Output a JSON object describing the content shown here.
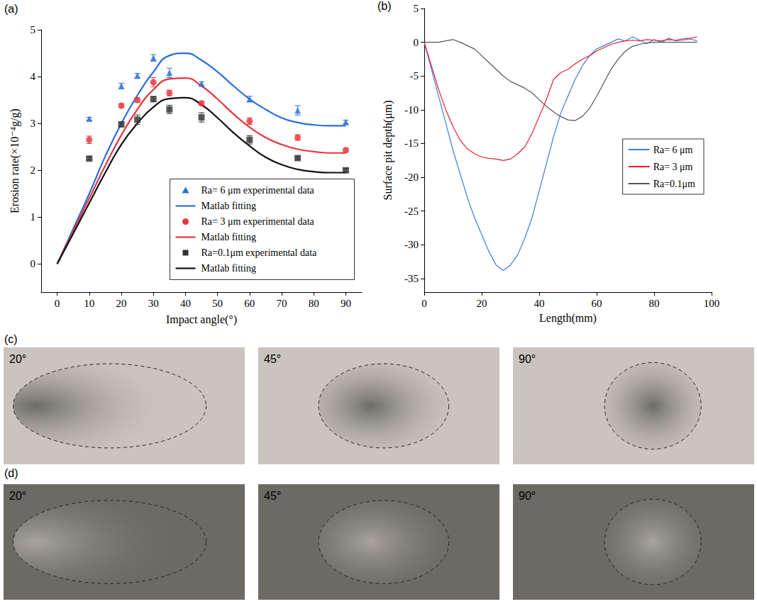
{
  "chart_data": [
    {
      "label": "(a)",
      "type": "scatter",
      "xlabel": "Impact angle(°)",
      "ylabel": "Erosion rate(×10⁻⁴g/g)",
      "xlim": [
        -5,
        95
      ],
      "xticks": [
        0,
        10,
        20,
        30,
        40,
        50,
        60,
        70,
        80,
        90
      ],
      "ylim": [
        -0.6,
        5
      ],
      "yticks": [
        0,
        1,
        2,
        3,
        4,
        5
      ],
      "grid": false,
      "legend": "lower right",
      "series": [
        {
          "name": "Ra= 6 μm experimental data",
          "type": "scatter",
          "color": "#2a6fd8",
          "marker": "triangle",
          "x": [
            10,
            20,
            25,
            30,
            35,
            45,
            60,
            75,
            90
          ],
          "values": [
            3.1,
            3.8,
            4.02,
            4.4,
            4.08,
            3.85,
            3.52,
            3.28,
            3.03
          ],
          "errors": [
            0.03,
            0.06,
            0.05,
            0.07,
            0.1,
            0.04,
            0.06,
            0.1,
            0.04
          ]
        },
        {
          "name": "Matlab fitting",
          "type": "line",
          "color": "#2a6fd8",
          "line_style": "solid",
          "x": [
            0,
            5,
            10,
            15,
            20,
            25,
            30,
            35,
            40,
            45,
            50,
            55,
            60,
            65,
            70,
            75,
            80,
            85,
            90
          ],
          "values": [
            0,
            0.75,
            1.5,
            2.3,
            3.0,
            3.6,
            4.1,
            4.45,
            4.5,
            4.35,
            4.1,
            3.8,
            3.52,
            3.3,
            3.12,
            3.02,
            2.97,
            2.95,
            2.95
          ]
        },
        {
          "name": "Ra= 3 μm experimental data",
          "type": "scatter",
          "color": "#e8353b",
          "marker": "circle",
          "x": [
            10,
            20,
            25,
            30,
            35,
            45,
            60,
            75,
            90
          ],
          "values": [
            2.65,
            3.38,
            3.5,
            3.88,
            3.65,
            3.43,
            3.05,
            2.7,
            2.43
          ],
          "errors": [
            0.08,
            0.04,
            0.05,
            0.1,
            0.06,
            0.04,
            0.07,
            0.06,
            0.04
          ]
        },
        {
          "name": "Matlab fitting",
          "type": "line",
          "color": "#e8353b",
          "line_style": "solid",
          "x": [
            0,
            5,
            10,
            15,
            20,
            25,
            30,
            35,
            40,
            45,
            50,
            55,
            60,
            65,
            70,
            75,
            80,
            85,
            90
          ],
          "values": [
            0,
            0.7,
            1.4,
            2.1,
            2.75,
            3.3,
            3.72,
            3.95,
            3.97,
            3.8,
            3.52,
            3.2,
            2.92,
            2.7,
            2.55,
            2.45,
            2.4,
            2.37,
            2.37
          ]
        },
        {
          "name": "Ra=0.1μm experimental data",
          "type": "scatter",
          "color": "#333333",
          "marker": "square",
          "x": [
            10,
            20,
            25,
            30,
            35,
            45,
            60,
            75,
            90
          ],
          "values": [
            2.25,
            2.98,
            3.08,
            3.52,
            3.3,
            3.13,
            2.65,
            2.26,
            2.0
          ],
          "errors": [
            0.03,
            0.04,
            0.1,
            0.05,
            0.09,
            0.1,
            0.09,
            0.03,
            0.04
          ]
        },
        {
          "name": "Matlab fitting",
          "type": "line",
          "color": "#111111",
          "line_style": "solid",
          "x": [
            0,
            5,
            10,
            15,
            20,
            25,
            30,
            35,
            40,
            45,
            50,
            55,
            60,
            65,
            70,
            75,
            80,
            85,
            90
          ],
          "values": [
            0,
            0.65,
            1.3,
            1.95,
            2.55,
            3.0,
            3.35,
            3.53,
            3.55,
            3.4,
            3.12,
            2.8,
            2.52,
            2.28,
            2.12,
            2.02,
            1.97,
            1.95,
            1.95
          ]
        }
      ]
    },
    {
      "label": "(b)",
      "type": "line",
      "xlabel": "Length(mm)",
      "ylabel": "Surface pit depth(μm)",
      "xlim": [
        0,
        100
      ],
      "xticks": [
        0,
        20,
        40,
        60,
        80,
        100
      ],
      "ylim": [
        -37,
        5
      ],
      "yticks": [
        -35,
        -30,
        -25,
        -20,
        -15,
        -10,
        -5,
        0,
        5
      ],
      "grid": false,
      "legend": "right",
      "x": [
        0,
        2.5,
        5,
        7.5,
        10,
        12.5,
        15,
        17.5,
        20,
        22.5,
        25,
        27.5,
        30,
        32.5,
        35,
        37.5,
        40,
        42.5,
        45,
        47.5,
        50,
        52.5,
        55,
        57.5,
        60,
        62.5,
        65,
        67.5,
        70,
        72.5,
        75,
        77.5,
        80,
        82.5,
        85,
        87.5,
        90,
        92.5,
        95
      ],
      "series": [
        {
          "name": "Ra= 6 μm",
          "color": "#3b7ddd",
          "line_style": "solid",
          "values": [
            0,
            -4,
            -8,
            -12,
            -16,
            -19.5,
            -23,
            -26,
            -28.5,
            -31,
            -33,
            -33.8,
            -33,
            -31.5,
            -29,
            -26,
            -22,
            -18,
            -14,
            -10.5,
            -8,
            -5.5,
            -3.5,
            -2,
            -1,
            -0.5,
            0,
            0.5,
            0.2,
            0.8,
            0.3,
            -0.2,
            0.4,
            0,
            0.6,
            0.2,
            0.3,
            0.5,
            0.2
          ]
        },
        {
          "name": "Ra= 3 μm",
          "color": "#e8202a",
          "line_style": "solid",
          "values": [
            0,
            -3.5,
            -7,
            -10,
            -12.5,
            -14.5,
            -15.8,
            -16.5,
            -17,
            -17.2,
            -17.3,
            -17.5,
            -17.3,
            -16.5,
            -15.5,
            -13.5,
            -11,
            -8.5,
            -5.5,
            -4.5,
            -4,
            -3.2,
            -2.5,
            -2,
            -1.3,
            -0.8,
            -0.3,
            0,
            0.2,
            0.3,
            0.2,
            0.4,
            0.3,
            0.2,
            0.4,
            0.3,
            0.5,
            0.6,
            0.8
          ]
        },
        {
          "name": "Ra=0.1μm",
          "color": "#555555",
          "line_style": "solid",
          "values": [
            0,
            0,
            0,
            0.2,
            0.4,
            0,
            -0.5,
            -1,
            -2,
            -3,
            -4,
            -5,
            -5.8,
            -6.3,
            -6.8,
            -7.5,
            -8.5,
            -9.5,
            -10.3,
            -11,
            -11.5,
            -11.6,
            -11,
            -9.8,
            -8,
            -6,
            -4,
            -2.5,
            -1.3,
            -0.6,
            -0.3,
            -0.1,
            0,
            0,
            0,
            0,
            0,
            0,
            0
          ]
        }
      ]
    }
  ],
  "photos": [
    {
      "label": "(c)",
      "panels": [
        "20°",
        "45°",
        "90°"
      ]
    },
    {
      "label": "(d)",
      "panels": [
        "20°",
        "45°",
        "90°"
      ]
    }
  ]
}
